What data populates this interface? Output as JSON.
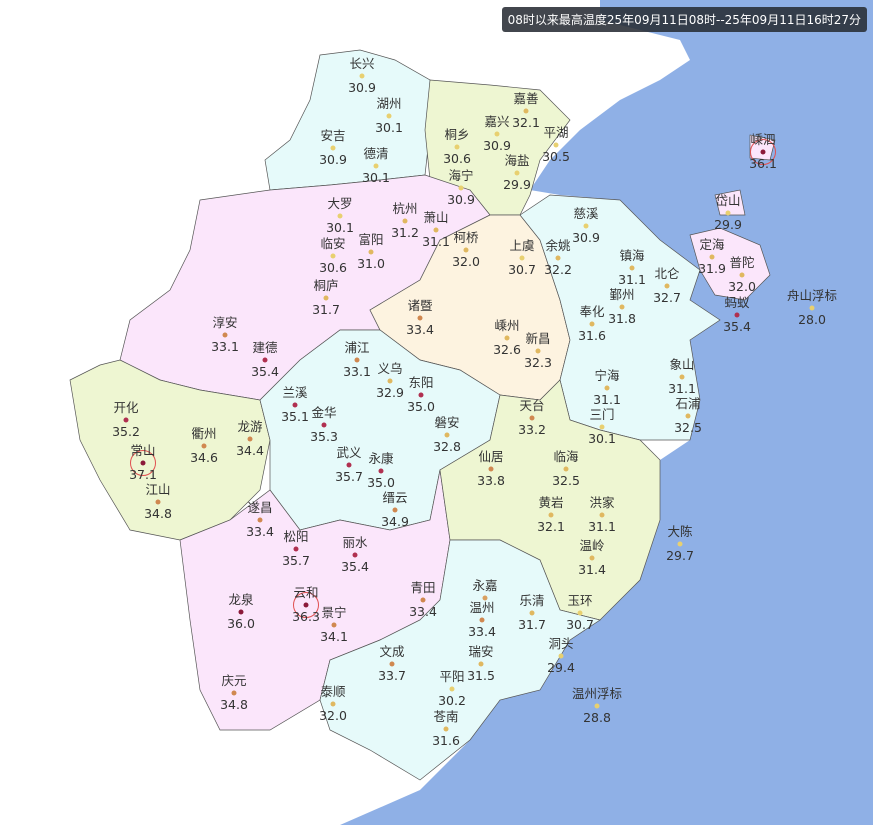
{
  "title": "08时以来最高温度25年09月11日08时--25年09月11日16时27分",
  "colors": {
    "sea": "#8fb0e6",
    "land_outside": "#ffffff",
    "huzhou": "#e6fafa",
    "jiaxing": "#eef6d2",
    "hangzhou": "#fbe6fb",
    "shaoxing": "#fdf3e0",
    "ningbo": "#e6fafa",
    "zhoushan": "#fbe6fb",
    "quzhou": "#eef6d2",
    "jinhua": "#e6fafa",
    "lishui": "#fbe6fb",
    "taizhou": "#eef6d2",
    "wenzhou": "#e6fafa",
    "highlight_ring": "#e05050"
  },
  "stations": [
    {
      "name": "长兴",
      "value": "30.9"
    },
    {
      "name": "湖州",
      "value": "30.1"
    },
    {
      "name": "安吉",
      "value": "30.9"
    },
    {
      "name": "德清",
      "value": "30.1"
    },
    {
      "name": "嘉善",
      "value": "32.1"
    },
    {
      "name": "嘉兴",
      "value": "30.9"
    },
    {
      "name": "平湖",
      "value": "30.5"
    },
    {
      "name": "桐乡",
      "value": "30.6"
    },
    {
      "name": "海宁",
      "value": "30.9"
    },
    {
      "name": "海盐",
      "value": "29.9"
    },
    {
      "name": "大罗",
      "value": "30.1"
    },
    {
      "name": "临安",
      "value": "30.6"
    },
    {
      "name": "杭州",
      "value": "31.2"
    },
    {
      "name": "萧山",
      "value": "31.1"
    },
    {
      "name": "富阳",
      "value": "31.0"
    },
    {
      "name": "柯桥",
      "value": "32.0"
    },
    {
      "name": "上虞",
      "value": "30.7"
    },
    {
      "name": "余姚",
      "value": "32.2"
    },
    {
      "name": "慈溪",
      "value": "30.9"
    },
    {
      "name": "镇海",
      "value": "31.1"
    },
    {
      "name": "北仑",
      "value": "32.7"
    },
    {
      "name": "鄞州",
      "value": "31.8"
    },
    {
      "name": "奉化",
      "value": "31.6"
    },
    {
      "name": "岱山",
      "value": "29.9"
    },
    {
      "name": "定海",
      "value": "31.9"
    },
    {
      "name": "普陀",
      "value": "32.0"
    },
    {
      "name": "蚂蚁",
      "value": "35.4"
    },
    {
      "name": "嵊泗",
      "value": "36.1",
      "highlight": true
    },
    {
      "name": "舟山浮标",
      "value": "28.0"
    },
    {
      "name": "桐庐",
      "value": "31.7"
    },
    {
      "name": "诸暨",
      "value": "33.4"
    },
    {
      "name": "嵊州",
      "value": "32.6"
    },
    {
      "name": "新昌",
      "value": "32.3"
    },
    {
      "name": "淳安",
      "value": "33.1"
    },
    {
      "name": "建德",
      "value": "35.4"
    },
    {
      "name": "浦江",
      "value": "33.1"
    },
    {
      "name": "义乌",
      "value": "32.9"
    },
    {
      "name": "东阳",
      "value": "35.0"
    },
    {
      "name": "兰溪",
      "value": "35.1"
    },
    {
      "name": "金华",
      "value": "35.3"
    },
    {
      "name": "磐安",
      "value": "32.8"
    },
    {
      "name": "宁海",
      "value": "31.1"
    },
    {
      "name": "象山",
      "value": "31.1"
    },
    {
      "name": "石浦",
      "value": "32.5"
    },
    {
      "name": "三门",
      "value": "30.1"
    },
    {
      "name": "天台",
      "value": "33.2"
    },
    {
      "name": "开化",
      "value": "35.2"
    },
    {
      "name": "衢州",
      "value": "34.6"
    },
    {
      "name": "龙游",
      "value": "34.4"
    },
    {
      "name": "常山",
      "value": "37.1",
      "highlight": true
    },
    {
      "name": "江山",
      "value": "34.8"
    },
    {
      "name": "武义",
      "value": "35.7"
    },
    {
      "name": "永康",
      "value": "35.0"
    },
    {
      "name": "缙云",
      "value": "34.9"
    },
    {
      "name": "仙居",
      "value": "33.8"
    },
    {
      "name": "临海",
      "value": "32.5"
    },
    {
      "name": "遂昌",
      "value": "33.4"
    },
    {
      "name": "松阳",
      "value": "35.7"
    },
    {
      "name": "丽水",
      "value": "35.4"
    },
    {
      "name": "黄岩",
      "value": "32.1"
    },
    {
      "name": "洪家",
      "value": "31.1"
    },
    {
      "name": "温岭",
      "value": "31.4"
    },
    {
      "name": "大陈",
      "value": "29.7"
    },
    {
      "name": "龙泉",
      "value": "36.0"
    },
    {
      "name": "云和",
      "value": "36.3",
      "highlight": true
    },
    {
      "name": "景宁",
      "value": "34.1"
    },
    {
      "name": "青田",
      "value": "33.4"
    },
    {
      "name": "永嘉",
      "value": ""
    },
    {
      "name": "温州",
      "value": "33.4"
    },
    {
      "name": "乐清",
      "value": "31.7"
    },
    {
      "name": "玉环",
      "value": "30.7"
    },
    {
      "name": "洞头",
      "value": "29.4"
    },
    {
      "name": "文成",
      "value": "33.7"
    },
    {
      "name": "瑞安",
      "value": "31.5"
    },
    {
      "name": "平阳",
      "value": "30.2"
    },
    {
      "name": "泰顺",
      "value": "32.0"
    },
    {
      "name": "苍南",
      "value": "31.6"
    },
    {
      "name": "庆元",
      "value": "34.8"
    },
    {
      "name": "温州浮标",
      "value": "28.8"
    }
  ]
}
